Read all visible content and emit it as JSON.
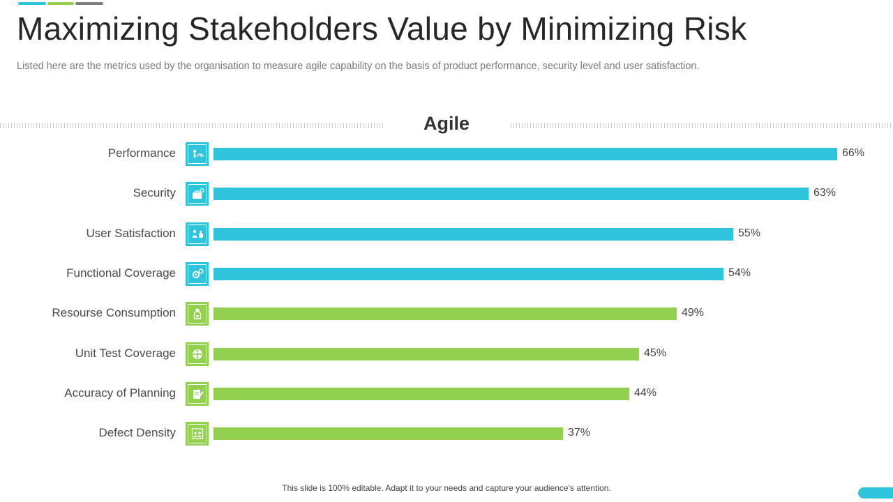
{
  "header": {
    "title": "Maximizing Stakeholders Value by Minimizing Risk",
    "subtitle": "Listed here are the metrics used by the organisation to measure agile capability on the basis of product performance, security level and user satisfaction."
  },
  "colors": {
    "cyan": "#2ec4dc",
    "green": "#92d050",
    "gray": "#7f7f7f"
  },
  "chart_data": {
    "type": "bar",
    "orientation": "horizontal",
    "title": "Agile",
    "xlabel": "",
    "ylabel": "",
    "xlim": [
      0,
      66
    ],
    "grid": false,
    "categories": [
      "Performance",
      "Security",
      "User Satisfaction",
      "Functional Coverage",
      "Resourse Consumption",
      "Unit Test Coverage",
      "Accuracy of Planning",
      "Defect Density"
    ],
    "values": [
      66,
      63,
      55,
      54,
      49,
      45,
      44,
      37
    ],
    "value_labels": [
      "66%",
      "63%",
      "55%",
      "54%",
      "49%",
      "45%",
      "44%",
      "37%"
    ],
    "bar_colors": [
      "#2ec4dc",
      "#2ec4dc",
      "#2ec4dc",
      "#2ec4dc",
      "#92d050",
      "#92d050",
      "#92d050",
      "#92d050"
    ],
    "icons": [
      "performance-gauge-icon",
      "security-briefcase-icon",
      "user-satisfaction-thumbs-icon",
      "functional-coverage-gears-icon",
      "resource-consumption-person-icon",
      "unit-test-coverage-wheel-icon",
      "accuracy-planning-clipboard-icon",
      "defect-density-team-icon"
    ]
  },
  "footer": {
    "note": "This slide is 100% editable. Adapt it to your needs and capture your audience’s attention."
  }
}
